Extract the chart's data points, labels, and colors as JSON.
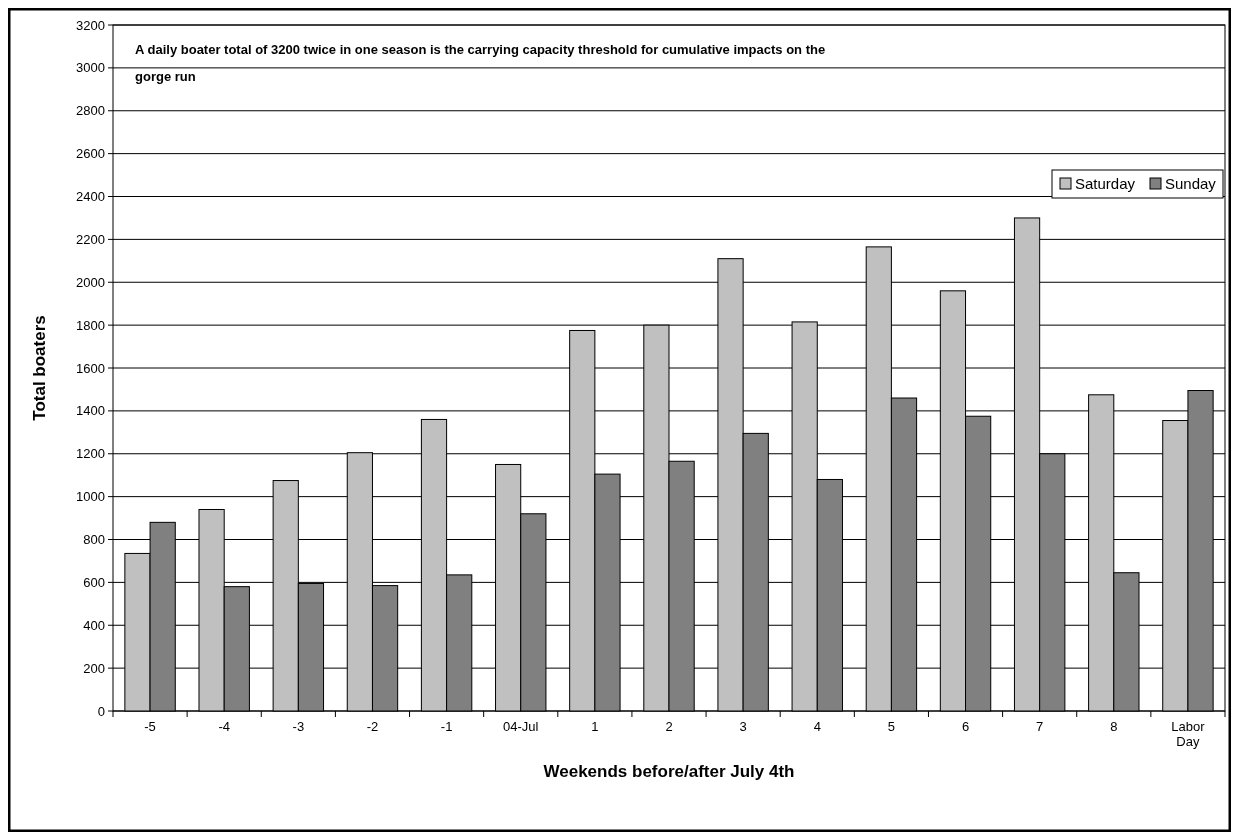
{
  "chart_data": {
    "type": "bar",
    "xlabel": "Weekends before/after July 4th",
    "ylabel": "Total boaters",
    "categories": [
      "-5",
      "-4",
      "-3",
      "-2",
      "-1",
      "04-Jul",
      "1",
      "2",
      "3",
      "4",
      "5",
      "6",
      "7",
      "8",
      "Labor Day"
    ],
    "series": [
      {
        "name": "Saturday",
        "color": "#c0c0c0",
        "values": [
          735,
          940,
          1075,
          1205,
          1360,
          1150,
          1775,
          1800,
          2110,
          1815,
          2165,
          1960,
          2300,
          1475,
          1355
        ]
      },
      {
        "name": "Sunday",
        "color": "#808080",
        "values": [
          880,
          580,
          595,
          585,
          635,
          920,
          1105,
          1165,
          1295,
          1080,
          1460,
          1375,
          1200,
          645,
          1495
        ]
      }
    ],
    "ylim": [
      0,
      3200
    ],
    "yticks": [
      0,
      200,
      400,
      600,
      800,
      1000,
      1200,
      1400,
      1600,
      1800,
      2000,
      2200,
      2400,
      2600,
      2800,
      3000,
      3200
    ],
    "grid": "y",
    "legend": "top right",
    "annotations": [
      "A daily boater total of 3200 twice in one season is the carrying capacity threshold for cumulative impacts on the gorge run"
    ]
  }
}
